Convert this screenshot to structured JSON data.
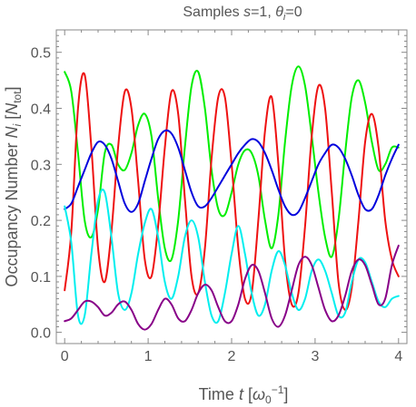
{
  "chart_data": {
    "type": "line",
    "title": {
      "prefix": "Samples  ",
      "s_symbol": "s",
      "s_value": "=1,  ",
      "theta_symbol": "θ",
      "theta_sub": "i",
      "theta_value": "=0"
    },
    "xlabel": {
      "prefix": "Time  ",
      "symbol": "t",
      "unit_open": " [",
      "unit_symbol": "ω",
      "unit_sub": "0",
      "unit_sup": "−1",
      "unit_close": "]"
    },
    "ylabel": {
      "prefix": "Occupancy Number  ",
      "symbol": "N",
      "sub": "i",
      "unit_open": " [",
      "unit_symbol": "N",
      "unit_sub": "tot",
      "unit_close": "]"
    },
    "xlim": [
      -0.1,
      4.1
    ],
    "ylim": [
      -0.02,
      0.54
    ],
    "x_ticks": [
      "0",
      "1",
      "2",
      "3",
      "4"
    ],
    "x_tick_values": [
      0,
      1,
      2,
      3,
      4
    ],
    "y_ticks": [
      "0.0",
      "0.1",
      "0.2",
      "0.3",
      "0.4",
      "0.5"
    ],
    "y_tick_values": [
      0.0,
      0.1,
      0.2,
      0.3,
      0.4,
      0.5
    ],
    "grid": false,
    "series": [
      {
        "color": "#00ee00",
        "x": [
          0,
          0.08,
          0.16,
          0.24,
          0.32,
          0.4,
          0.48,
          0.56,
          0.64,
          0.72,
          0.8,
          0.88,
          0.96,
          1.04,
          1.12,
          1.2,
          1.28,
          1.36,
          1.44,
          1.52,
          1.6,
          1.68,
          1.76,
          1.84,
          1.92,
          2.0,
          2.08,
          2.16,
          2.24,
          2.32,
          2.4,
          2.48,
          2.56,
          2.64,
          2.72,
          2.8,
          2.88,
          2.96,
          3.04,
          3.12,
          3.2,
          3.28,
          3.36,
          3.44,
          3.52,
          3.6,
          3.68,
          3.76,
          3.84,
          3.92,
          4.0
        ],
        "y": [
          0.465,
          0.43,
          0.32,
          0.2,
          0.17,
          0.22,
          0.32,
          0.335,
          0.3,
          0.29,
          0.32,
          0.37,
          0.39,
          0.35,
          0.24,
          0.15,
          0.13,
          0.2,
          0.33,
          0.44,
          0.465,
          0.4,
          0.29,
          0.22,
          0.21,
          0.25,
          0.3,
          0.325,
          0.32,
          0.28,
          0.2,
          0.15,
          0.21,
          0.34,
          0.44,
          0.475,
          0.44,
          0.35,
          0.25,
          0.17,
          0.135,
          0.2,
          0.32,
          0.42,
          0.45,
          0.41,
          0.34,
          0.29,
          0.3,
          0.33,
          0.33
        ]
      },
      {
        "color": "#ee1111",
        "x": [
          0,
          0.08,
          0.16,
          0.24,
          0.32,
          0.4,
          0.48,
          0.56,
          0.64,
          0.72,
          0.8,
          0.88,
          0.96,
          1.04,
          1.12,
          1.2,
          1.28,
          1.36,
          1.44,
          1.52,
          1.6,
          1.68,
          1.76,
          1.84,
          1.92,
          2.0,
          2.08,
          2.16,
          2.24,
          2.32,
          2.4,
          2.48,
          2.56,
          2.64,
          2.72,
          2.8,
          2.88,
          2.96,
          3.04,
          3.12,
          3.2,
          3.28,
          3.36,
          3.44,
          3.52,
          3.6,
          3.68,
          3.76,
          3.84,
          3.92,
          4.0
        ],
        "y": [
          0.075,
          0.18,
          0.4,
          0.46,
          0.33,
          0.15,
          0.09,
          0.18,
          0.33,
          0.43,
          0.4,
          0.27,
          0.13,
          0.1,
          0.19,
          0.33,
          0.43,
          0.39,
          0.24,
          0.1,
          0.07,
          0.15,
          0.31,
          0.42,
          0.42,
          0.3,
          0.15,
          0.06,
          0.07,
          0.2,
          0.36,
          0.42,
          0.3,
          0.13,
          0.05,
          0.07,
          0.19,
          0.35,
          0.44,
          0.4,
          0.25,
          0.09,
          0.04,
          0.08,
          0.2,
          0.34,
          0.39,
          0.33,
          0.2,
          0.13,
          0.1
        ]
      },
      {
        "color": "#0000dd",
        "x": [
          0,
          0.08,
          0.16,
          0.24,
          0.32,
          0.4,
          0.48,
          0.56,
          0.64,
          0.72,
          0.8,
          0.88,
          0.96,
          1.04,
          1.12,
          1.2,
          1.28,
          1.36,
          1.44,
          1.52,
          1.6,
          1.68,
          1.76,
          1.84,
          1.92,
          2.0,
          2.08,
          2.16,
          2.24,
          2.32,
          2.4,
          2.48,
          2.56,
          2.64,
          2.72,
          2.8,
          2.88,
          2.96,
          3.04,
          3.12,
          3.2,
          3.28,
          3.36,
          3.44,
          3.52,
          3.6,
          3.68,
          3.76,
          3.84,
          3.92,
          4.0
        ],
        "y": [
          0.22,
          0.23,
          0.26,
          0.29,
          0.32,
          0.34,
          0.335,
          0.31,
          0.27,
          0.23,
          0.215,
          0.23,
          0.27,
          0.31,
          0.345,
          0.36,
          0.355,
          0.33,
          0.29,
          0.25,
          0.225,
          0.225,
          0.24,
          0.26,
          0.28,
          0.3,
          0.32,
          0.335,
          0.345,
          0.34,
          0.32,
          0.29,
          0.255,
          0.225,
          0.21,
          0.215,
          0.24,
          0.27,
          0.3,
          0.32,
          0.335,
          0.33,
          0.31,
          0.28,
          0.245,
          0.22,
          0.22,
          0.245,
          0.28,
          0.31,
          0.335
        ]
      },
      {
        "color": "#00eeee",
        "x": [
          0,
          0.08,
          0.16,
          0.24,
          0.32,
          0.4,
          0.48,
          0.56,
          0.64,
          0.72,
          0.8,
          0.88,
          0.96,
          1.04,
          1.12,
          1.2,
          1.28,
          1.36,
          1.44,
          1.52,
          1.6,
          1.68,
          1.76,
          1.84,
          1.92,
          2.0,
          2.08,
          2.16,
          2.24,
          2.32,
          2.4,
          2.48,
          2.56,
          2.64,
          2.72,
          2.8,
          2.88,
          2.96,
          3.04,
          3.12,
          3.2,
          3.28,
          3.36,
          3.44,
          3.52,
          3.6,
          3.68,
          3.76,
          3.84,
          3.92,
          4.0
        ],
        "y": [
          0.225,
          0.16,
          0.03,
          0.03,
          0.14,
          0.235,
          0.25,
          0.17,
          0.07,
          0.04,
          0.07,
          0.14,
          0.195,
          0.22,
          0.17,
          0.09,
          0.06,
          0.1,
          0.17,
          0.2,
          0.17,
          0.09,
          0.03,
          0.02,
          0.07,
          0.14,
          0.19,
          0.14,
          0.07,
          0.03,
          0.05,
          0.11,
          0.145,
          0.12,
          0.07,
          0.04,
          0.06,
          0.11,
          0.13,
          0.11,
          0.07,
          0.03,
          0.035,
          0.09,
          0.13,
          0.125,
          0.09,
          0.055,
          0.045,
          0.06,
          0.065
        ]
      },
      {
        "color": "#880088",
        "x": [
          0,
          0.08,
          0.16,
          0.24,
          0.32,
          0.4,
          0.48,
          0.56,
          0.64,
          0.72,
          0.8,
          0.88,
          0.96,
          1.04,
          1.12,
          1.2,
          1.28,
          1.36,
          1.44,
          1.52,
          1.6,
          1.68,
          1.76,
          1.84,
          1.92,
          2.0,
          2.08,
          2.16,
          2.24,
          2.32,
          2.4,
          2.48,
          2.56,
          2.64,
          2.72,
          2.8,
          2.88,
          2.96,
          3.04,
          3.12,
          3.2,
          3.28,
          3.36,
          3.44,
          3.52,
          3.6,
          3.68,
          3.76,
          3.84,
          3.92,
          4.0
        ],
        "y": [
          0.02,
          0.025,
          0.04,
          0.055,
          0.055,
          0.045,
          0.03,
          0.035,
          0.05,
          0.055,
          0.04,
          0.015,
          0.005,
          0.015,
          0.04,
          0.06,
          0.05,
          0.025,
          0.02,
          0.04,
          0.07,
          0.085,
          0.075,
          0.045,
          0.02,
          0.02,
          0.05,
          0.095,
          0.12,
          0.11,
          0.07,
          0.025,
          0.01,
          0.03,
          0.075,
          0.12,
          0.135,
          0.12,
          0.08,
          0.04,
          0.02,
          0.03,
          0.065,
          0.11,
          0.13,
          0.12,
          0.085,
          0.05,
          0.06,
          0.12,
          0.155
        ]
      }
    ]
  }
}
